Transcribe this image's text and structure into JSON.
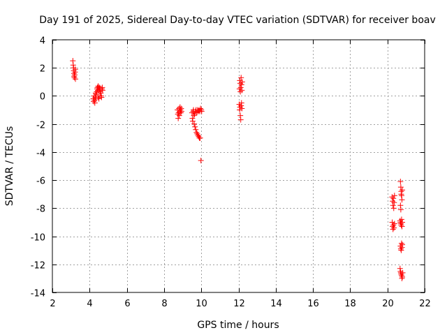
{
  "chart_data": {
    "type": "scatter",
    "title": "Day 191 of 2025, Sidereal Day-to-day VTEC variation (SDTVAR) for receiver boav",
    "xlabel": "GPS time / hours",
    "ylabel": "SDTVAR / TECUs",
    "xlim": [
      2,
      22
    ],
    "ylim": [
      -14,
      4
    ],
    "xticks": [
      2,
      4,
      6,
      8,
      10,
      12,
      14,
      16,
      18,
      20,
      22
    ],
    "yticks": [
      4,
      2,
      0,
      -2,
      -4,
      -6,
      -8,
      -10,
      -12,
      -14
    ],
    "grid": true,
    "marker": "+",
    "color": "#ff0000",
    "series": [
      {
        "name": "SDTVAR",
        "points": [
          [
            3.1,
            2.5
          ],
          [
            3.12,
            2.2
          ],
          [
            3.14,
            2.0
          ],
          [
            3.15,
            1.8
          ],
          [
            3.16,
            1.6
          ],
          [
            3.17,
            1.4
          ],
          [
            3.18,
            1.3
          ],
          [
            3.2,
            1.5
          ],
          [
            3.22,
            1.7
          ],
          [
            3.23,
            1.9
          ],
          [
            3.24,
            1.2
          ],
          [
            4.2,
            -0.2
          ],
          [
            4.22,
            -0.4
          ],
          [
            4.24,
            0.0
          ],
          [
            4.26,
            -0.3
          ],
          [
            4.28,
            -0.5
          ],
          [
            4.3,
            -0.1
          ],
          [
            4.32,
            0.2
          ],
          [
            4.34,
            -0.2
          ],
          [
            4.36,
            0.1
          ],
          [
            4.38,
            0.3
          ],
          [
            4.4,
            0.5
          ],
          [
            4.42,
            0.6
          ],
          [
            4.44,
            0.4
          ],
          [
            4.46,
            0.7
          ],
          [
            4.48,
            0.6
          ],
          [
            4.5,
            0.4
          ],
          [
            4.52,
            0.5
          ],
          [
            4.54,
            0.6
          ],
          [
            4.56,
            0.3
          ],
          [
            4.58,
            0.5
          ],
          [
            4.6,
            0.2
          ],
          [
            4.62,
            0.0
          ],
          [
            4.64,
            -0.1
          ],
          [
            4.66,
            0.5
          ],
          [
            4.68,
            0.6
          ],
          [
            4.7,
            0.4
          ],
          [
            4.45,
            -0.1
          ],
          [
            4.5,
            -0.2
          ],
          [
            4.55,
            0.0
          ],
          [
            8.72,
            -1.0
          ],
          [
            8.74,
            -1.3
          ],
          [
            8.76,
            -1.6
          ],
          [
            8.78,
            -1.2
          ],
          [
            8.8,
            -0.9
          ],
          [
            8.82,
            -1.4
          ],
          [
            8.84,
            -1.1
          ],
          [
            8.86,
            -0.8
          ],
          [
            8.88,
            -1.0
          ],
          [
            8.9,
            -1.2
          ],
          [
            8.92,
            -0.9
          ],
          [
            8.94,
            -1.1
          ],
          [
            9.5,
            -1.2
          ],
          [
            9.52,
            -1.6
          ],
          [
            9.54,
            -1.8
          ],
          [
            9.56,
            -1.1
          ],
          [
            9.58,
            -1.0
          ],
          [
            9.6,
            -1.4
          ],
          [
            9.62,
            -2.0
          ],
          [
            9.64,
            -1.3
          ],
          [
            9.66,
            -2.2
          ],
          [
            9.68,
            -1.1
          ],
          [
            9.7,
            -2.4
          ],
          [
            9.72,
            -1.0
          ],
          [
            9.74,
            -2.6
          ],
          [
            9.76,
            -1.2
          ],
          [
            9.78,
            -2.7
          ],
          [
            9.8,
            -1.0
          ],
          [
            9.82,
            -2.8
          ],
          [
            9.84,
            -1.1
          ],
          [
            9.86,
            -2.9
          ],
          [
            9.88,
            -1.0
          ],
          [
            9.9,
            -3.0
          ],
          [
            9.92,
            -1.1
          ],
          [
            9.94,
            -3.0
          ],
          [
            9.96,
            -0.9
          ],
          [
            9.98,
            -4.6
          ],
          [
            10.0,
            -1.0
          ],
          [
            10.02,
            -1.1
          ],
          [
            12.05,
            0.5
          ],
          [
            12.07,
            1.1
          ],
          [
            12.09,
            0.9
          ],
          [
            12.1,
            0.3
          ],
          [
            12.12,
            0.6
          ],
          [
            12.14,
            1.3
          ],
          [
            12.16,
            0.8
          ],
          [
            12.18,
            0.4
          ],
          [
            12.2,
            1.0
          ],
          [
            12.04,
            -0.6
          ],
          [
            12.06,
            -1.0
          ],
          [
            12.08,
            -0.8
          ],
          [
            12.1,
            -1.4
          ],
          [
            12.12,
            -1.7
          ],
          [
            12.14,
            -0.7
          ],
          [
            12.16,
            -0.5
          ],
          [
            12.18,
            -0.9
          ],
          [
            20.25,
            -7.2
          ],
          [
            20.28,
            -7.5
          ],
          [
            20.3,
            -7.8
          ],
          [
            20.32,
            -7.3
          ],
          [
            20.34,
            -8.0
          ],
          [
            20.36,
            -7.6
          ],
          [
            20.38,
            -7.1
          ],
          [
            20.26,
            -9.0
          ],
          [
            20.28,
            -9.3
          ],
          [
            20.3,
            -9.5
          ],
          [
            20.32,
            -9.2
          ],
          [
            20.35,
            -9.4
          ],
          [
            20.38,
            -9.1
          ],
          [
            20.7,
            -6.1
          ],
          [
            20.72,
            -6.5
          ],
          [
            20.74,
            -6.8
          ],
          [
            20.76,
            -7.1
          ],
          [
            20.78,
            -7.4
          ],
          [
            20.7,
            -7.8
          ],
          [
            20.72,
            -8.1
          ],
          [
            20.74,
            -7.0
          ],
          [
            20.8,
            -6.7
          ],
          [
            20.68,
            -8.9
          ],
          [
            20.7,
            -9.0
          ],
          [
            20.72,
            -9.1
          ],
          [
            20.74,
            -9.2
          ],
          [
            20.76,
            -8.8
          ],
          [
            20.78,
            -9.3
          ],
          [
            20.8,
            -9.0
          ],
          [
            20.7,
            -10.7
          ],
          [
            20.72,
            -10.9
          ],
          [
            20.74,
            -11.0
          ],
          [
            20.76,
            -10.5
          ],
          [
            20.78,
            -10.8
          ],
          [
            20.8,
            -10.6
          ],
          [
            20.68,
            -12.3
          ],
          [
            20.7,
            -12.5
          ],
          [
            20.72,
            -12.6
          ],
          [
            20.74,
            -12.7
          ],
          [
            20.76,
            -12.8
          ],
          [
            20.78,
            -13.0
          ],
          [
            20.8,
            -12.9
          ],
          [
            20.82,
            -12.6
          ]
        ]
      }
    ]
  }
}
